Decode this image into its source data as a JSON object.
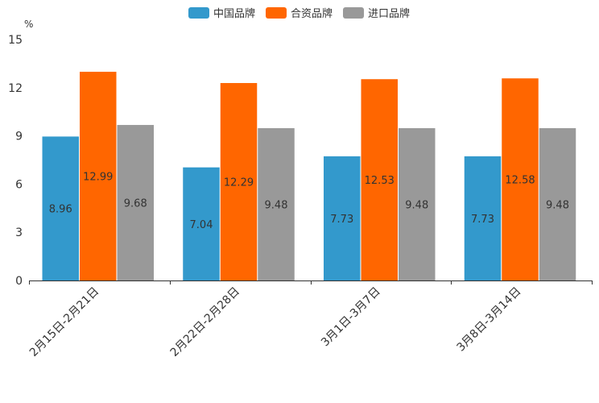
{
  "chart_data": {
    "type": "bar",
    "title": "",
    "ylabel": "%",
    "xlabel": "",
    "ylim": [
      0,
      15
    ],
    "yticks": [
      0,
      3,
      6,
      9,
      12,
      15
    ],
    "grid": false,
    "legend_position": "top-center",
    "categories": [
      "2月15日-2月21日",
      "2月22日-2月28日",
      "3月1日-3月7日",
      "3月8日-3月14日"
    ],
    "series": [
      {
        "name": "中国品牌",
        "color": "#3399cc",
        "values": [
          8.96,
          7.04,
          7.73,
          7.73
        ]
      },
      {
        "name": "合资品牌",
        "color": "#ff6600",
        "values": [
          12.99,
          12.29,
          12.53,
          12.58
        ]
      },
      {
        "name": "进口品牌",
        "color": "#999999",
        "values": [
          9.68,
          9.48,
          9.48,
          9.48
        ]
      }
    ]
  }
}
